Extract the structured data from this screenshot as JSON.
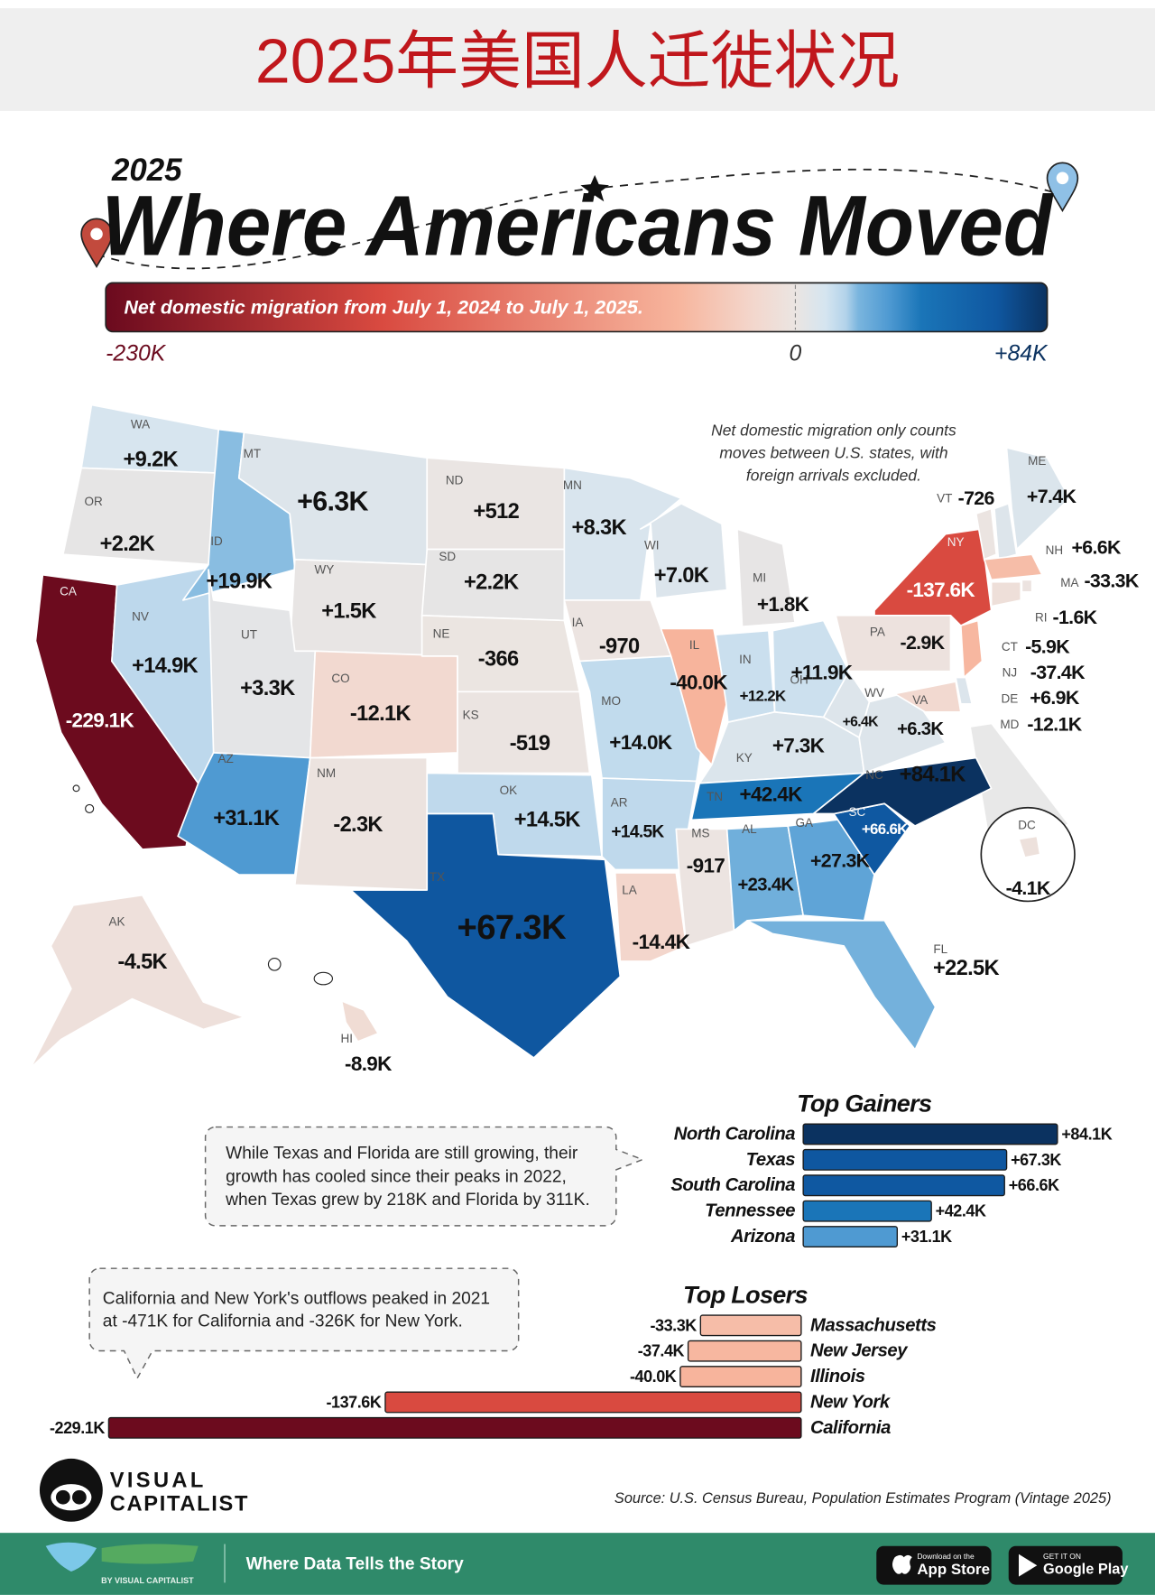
{
  "header": {
    "title": "2025年美国人迁徙状况"
  },
  "infographic": {
    "year": "2025",
    "title": "Where Americans Moved",
    "scale": {
      "caption": "Net domestic migration from July 1, 2024 to July 1, 2025.",
      "ticks": [
        {
          "value": -230000,
          "label": "-230K"
        },
        0,
        {
          "value": 84000,
          "label": "+84K"
        }
      ]
    }
  },
  "map": {
    "note": [
      "Net domestic migration only counts",
      "moves between U.S. states, with",
      "foreign arrivals excluded."
    ],
    "states": [
      {
        "abbr": "WA",
        "value": 9200,
        "value_label": "+9.2K"
      },
      {
        "abbr": "OR",
        "value": 2200,
        "value_label": "+2.2K"
      },
      {
        "abbr": "CA",
        "value": -229100,
        "value_label": "-229.1K"
      },
      {
        "abbr": "NV",
        "value": 14900,
        "value_label": "+14.9K"
      },
      {
        "abbr": "ID",
        "value": 19900,
        "value_label": "+19.9K"
      },
      {
        "abbr": "MT",
        "value": 6300,
        "value_label": "+6.3K"
      },
      {
        "abbr": "WY",
        "value": 1500,
        "value_label": "+1.5K"
      },
      {
        "abbr": "UT",
        "value": 3300,
        "value_label": "+3.3K"
      },
      {
        "abbr": "CO",
        "value": -12100,
        "value_label": "-12.1K"
      },
      {
        "abbr": "AZ",
        "value": 31100,
        "value_label": "+31.1K"
      },
      {
        "abbr": "NM",
        "value": -2300,
        "value_label": "-2.3K"
      },
      {
        "abbr": "ND",
        "value": 512,
        "value_label": "+512"
      },
      {
        "abbr": "SD",
        "value": 2200,
        "value_label": "+2.2K"
      },
      {
        "abbr": "NE",
        "value": -366
      },
      {
        "abbr": "KS",
        "value": -519
      },
      {
        "abbr": "OK",
        "value": 14500,
        "value_label": "+14.5K"
      },
      {
        "abbr": "TX",
        "value": 67300,
        "value_label": "+67.3K"
      },
      {
        "abbr": "MN",
        "value": 8300,
        "value_label": "+8.3K"
      },
      {
        "abbr": "IA",
        "value": -970
      },
      {
        "abbr": "MO",
        "value": 14000,
        "value_label": "+14.0K"
      },
      {
        "abbr": "AR",
        "value": 14500,
        "value_label": "+14.5K"
      },
      {
        "abbr": "LA",
        "value": -14400,
        "value_label": "-14.4K"
      },
      {
        "abbr": "WI",
        "value": 7000,
        "value_label": "+7.0K"
      },
      {
        "abbr": "IL",
        "value": -40000,
        "value_label": "-40.0K"
      },
      {
        "abbr": "MI",
        "value": 1800,
        "value_label": "+1.8K"
      },
      {
        "abbr": "IN",
        "value": 12200,
        "value_label": "+12.2K"
      },
      {
        "abbr": "OH",
        "value": 11900,
        "value_label": "+11.9K"
      },
      {
        "abbr": "KY",
        "value": 7300,
        "value_label": "+7.3K"
      },
      {
        "abbr": "TN",
        "value": 42400,
        "value_label": "+42.4K"
      },
      {
        "abbr": "MS",
        "value": -917
      },
      {
        "abbr": "AL",
        "value": 23400,
        "value_label": "+23.4K"
      },
      {
        "abbr": "GA",
        "value": 27300,
        "value_label": "+27.3K"
      },
      {
        "abbr": "FL",
        "value": 22500,
        "value_label": "+22.5K"
      },
      {
        "abbr": "SC",
        "value": 66600,
        "value_label": "+66.6K"
      },
      {
        "abbr": "NC",
        "value": 84100,
        "value_label": "+84.1K"
      },
      {
        "abbr": "VA",
        "value": 6300,
        "value_label": "+6.3K"
      },
      {
        "abbr": "WV",
        "value": 6400,
        "value_label": "+6.4K"
      },
      {
        "abbr": "PA",
        "value": -2900,
        "value_label": "-2.9K"
      },
      {
        "abbr": "NY",
        "value": -137600,
        "value_label": "-137.6K"
      },
      {
        "abbr": "VT",
        "value": -726
      },
      {
        "abbr": "NH",
        "value": 6600,
        "value_label": "+6.6K"
      },
      {
        "abbr": "ME",
        "value": 7400,
        "value_label": "+7.4K"
      },
      {
        "abbr": "MA",
        "value": -33300,
        "value_label": "-33.3K"
      },
      {
        "abbr": "RI",
        "value": -1600,
        "value_label": "-1.6K"
      },
      {
        "abbr": "CT",
        "value": -5900,
        "value_label": "-5.9K"
      },
      {
        "abbr": "NJ",
        "value": -37400,
        "value_label": "-37.4K"
      },
      {
        "abbr": "DE",
        "value": 6900,
        "value_label": "+6.9K"
      },
      {
        "abbr": "MD",
        "value": -12100,
        "value_label": "-12.1K"
      },
      {
        "abbr": "DC",
        "value": -4100,
        "value_label": "-4.1K"
      },
      {
        "abbr": "AK",
        "value": -4500,
        "value_label": "-4.5K"
      },
      {
        "abbr": "HI",
        "value": -8900,
        "value_label": "-8.9K"
      }
    ]
  },
  "notes": [
    [
      "While Texas and Florida are still growing, their",
      "growth has cooled since their peaks in 2022,",
      "when Texas grew by 218K and Florida by 311K."
    ],
    [
      "California and New York's outflows peaked in 2021",
      "at -471K for California and -326K for New York."
    ]
  ],
  "chart_data": [
    {
      "type": "bar",
      "title": "Top Gainers",
      "categories": [
        "North Carolina",
        "Texas",
        "South Carolina",
        "Tennessee",
        "Arizona"
      ],
      "values": [
        84100,
        67300,
        66600,
        42400,
        31100
      ],
      "value_labels": [
        "+84.1K",
        "+67.3K",
        "+66.6K",
        "+42.4K",
        "+31.1K"
      ]
    },
    {
      "type": "bar",
      "title": "Top Losers",
      "categories": [
        "Massachusetts",
        "New Jersey",
        "Illinois",
        "New York",
        "California"
      ],
      "values": [
        -33300,
        -37400,
        -40000,
        -137600,
        -229100
      ],
      "value_labels": [
        "-33.3K",
        "-37.4K",
        "-40.0K",
        "-137.6K",
        "-229.1K"
      ]
    }
  ],
  "footer": {
    "brand": [
      "VISUAL",
      "CAPITALIST"
    ],
    "source": "Source: U.S. Census Bureau, Population Estimates Program (Vintage 2025)",
    "banner": {
      "brand_sub": "BY VISUAL CAPITALIST",
      "tagline": "Where Data Tells the Story",
      "buttons": [
        [
          "Download on the",
          "App Store"
        ],
        [
          "GET IT ON",
          "Google Play"
        ]
      ]
    }
  }
}
